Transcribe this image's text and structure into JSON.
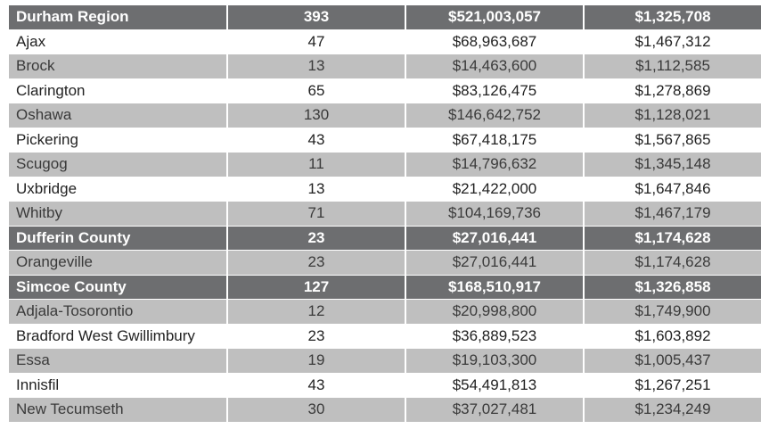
{
  "table": {
    "rows": [
      {
        "type": "region",
        "name": "Durham Region",
        "count": "393",
        "total": "$521,003,057",
        "average": "$1,325,708"
      },
      {
        "type": "light",
        "name": "Ajax",
        "count": "47",
        "total": "$68,963,687",
        "average": "$1,467,312"
      },
      {
        "type": "grey",
        "name": "Brock",
        "count": "13",
        "total": "$14,463,600",
        "average": "$1,112,585"
      },
      {
        "type": "light",
        "name": "Clarington",
        "count": "65",
        "total": "$83,126,475",
        "average": "$1,278,869"
      },
      {
        "type": "grey",
        "name": "Oshawa",
        "count": "130",
        "total": "$146,642,752",
        "average": "$1,128,021"
      },
      {
        "type": "light",
        "name": "Pickering",
        "count": "43",
        "total": "$67,418,175",
        "average": "$1,567,865"
      },
      {
        "type": "grey",
        "name": "Scugog",
        "count": "11",
        "total": "$14,796,632",
        "average": "$1,345,148"
      },
      {
        "type": "light",
        "name": "Uxbridge",
        "count": "13",
        "total": "$21,422,000",
        "average": "$1,647,846"
      },
      {
        "type": "grey",
        "name": "Whitby",
        "count": "71",
        "total": "$104,169,736",
        "average": "$1,467,179"
      },
      {
        "type": "region",
        "name": "Dufferin County",
        "count": "23",
        "total": "$27,016,441",
        "average": "$1,174,628"
      },
      {
        "type": "grey",
        "name": "Orangeville",
        "count": "23",
        "total": "$27,016,441",
        "average": "$1,174,628"
      },
      {
        "type": "region",
        "name": "Simcoe County",
        "count": "127",
        "total": "$168,510,917",
        "average": "$1,326,858"
      },
      {
        "type": "grey",
        "name": "Adjala-Tosorontio",
        "count": "12",
        "total": "$20,998,800",
        "average": "$1,749,900"
      },
      {
        "type": "light",
        "name": "Bradford West Gwillimbury",
        "count": "23",
        "total": "$36,889,523",
        "average": "$1,603,892"
      },
      {
        "type": "grey",
        "name": "Essa",
        "count": "19",
        "total": "$19,103,300",
        "average": "$1,005,437"
      },
      {
        "type": "light",
        "name": "Innisfil",
        "count": "43",
        "total": "$54,491,813",
        "average": "$1,267,251"
      },
      {
        "type": "grey",
        "name": "New Tecumseth",
        "count": "30",
        "total": "$37,027,481",
        "average": "$1,234,249"
      }
    ]
  }
}
